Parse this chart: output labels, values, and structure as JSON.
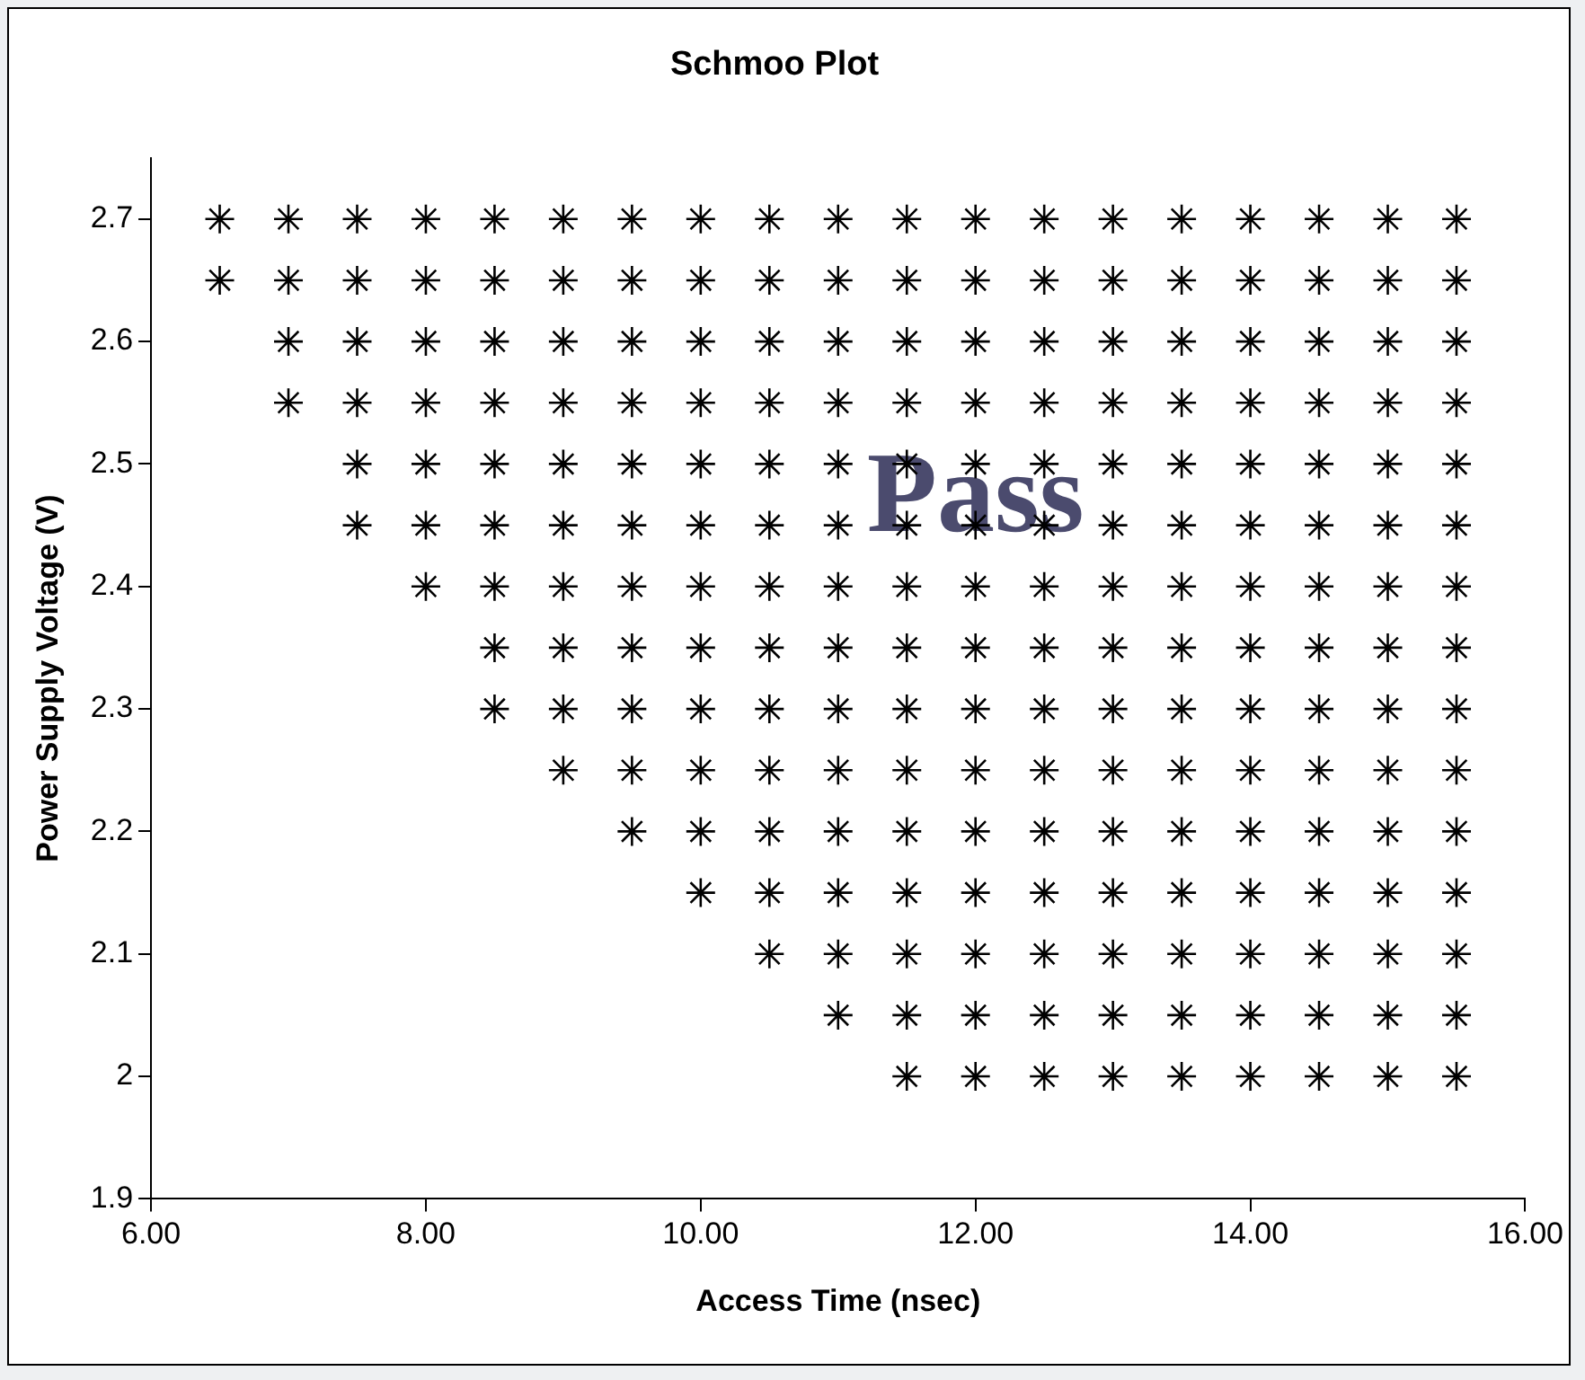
{
  "chart_data": {
    "type": "scatter",
    "title": "Schmoo Plot",
    "xlabel": "Access Time (nsec)",
    "ylabel": "Power Supply Voltage (V)",
    "xlim": [
      6,
      16
    ],
    "xticks": [
      {
        "value": 6,
        "label": "6.00"
      },
      {
        "value": 8,
        "label": "8.00"
      },
      {
        "value": 10,
        "label": "10.00"
      },
      {
        "value": 12,
        "label": "12.00"
      },
      {
        "value": 14,
        "label": "14.00"
      },
      {
        "value": 16,
        "label": "16.00"
      }
    ],
    "ylim": [
      1.9,
      2.75
    ],
    "yticks": [
      1.9,
      2,
      2.1,
      2.2,
      2.3,
      2.4,
      2.5,
      2.6,
      2.7
    ],
    "grid": false,
    "legend": false,
    "marker": "cross",
    "annotations": [
      "Pass"
    ],
    "series": [
      {
        "color": "#000000",
        "x": [
          6.5,
          7,
          7.5,
          8,
          8.5,
          9,
          9.5,
          10,
          10.5,
          11,
          11.5,
          12,
          12.5,
          13,
          13.5,
          14,
          14.5,
          15,
          15.5
        ],
        "values": [
          2.7,
          2.7,
          2.7,
          2.7,
          2.7,
          2.7,
          2.7,
          2.7,
          2.7,
          2.7,
          2.7,
          2.7,
          2.7,
          2.7,
          2.7,
          2.7,
          2.7,
          2.7,
          2.7
        ]
      },
      {
        "color": "#000000",
        "x": [
          6.5,
          7,
          7.5,
          8,
          8.5,
          9,
          9.5,
          10,
          10.5,
          11,
          11.5,
          12,
          12.5,
          13,
          13.5,
          14,
          14.5,
          15,
          15.5
        ],
        "values": [
          2.65,
          2.65,
          2.65,
          2.65,
          2.65,
          2.65,
          2.65,
          2.65,
          2.65,
          2.65,
          2.65,
          2.65,
          2.65,
          2.65,
          2.65,
          2.65,
          2.65,
          2.65,
          2.65
        ]
      },
      {
        "color": "#000000",
        "x": [
          7,
          7.5,
          8,
          8.5,
          9,
          9.5,
          10,
          10.5,
          11,
          11.5,
          12,
          12.5,
          13,
          13.5,
          14,
          14.5,
          15,
          15.5
        ],
        "values": [
          2.6,
          2.6,
          2.6,
          2.6,
          2.6,
          2.6,
          2.6,
          2.6,
          2.6,
          2.6,
          2.6,
          2.6,
          2.6,
          2.6,
          2.6,
          2.6,
          2.6,
          2.6
        ]
      },
      {
        "color": "#000000",
        "x": [
          7,
          7.5,
          8,
          8.5,
          9,
          9.5,
          10,
          10.5,
          11,
          11.5,
          12,
          12.5,
          13,
          13.5,
          14,
          14.5,
          15,
          15.5
        ],
        "values": [
          2.55,
          2.55,
          2.55,
          2.55,
          2.55,
          2.55,
          2.55,
          2.55,
          2.55,
          2.55,
          2.55,
          2.55,
          2.55,
          2.55,
          2.55,
          2.55,
          2.55,
          2.55
        ]
      },
      {
        "color": "#000000",
        "x": [
          7.5,
          8,
          8.5,
          9,
          9.5,
          10,
          10.5,
          11,
          11.5,
          12,
          12.5,
          13,
          13.5,
          14,
          14.5,
          15,
          15.5
        ],
        "values": [
          2.5,
          2.5,
          2.5,
          2.5,
          2.5,
          2.5,
          2.5,
          2.5,
          2.5,
          2.5,
          2.5,
          2.5,
          2.5,
          2.5,
          2.5,
          2.5,
          2.5
        ]
      },
      {
        "color": "#000000",
        "x": [
          7.5,
          8,
          8.5,
          9,
          9.5,
          10,
          10.5,
          11,
          11.5,
          12,
          12.5,
          13,
          13.5,
          14,
          14.5,
          15,
          15.5
        ],
        "values": [
          2.45,
          2.45,
          2.45,
          2.45,
          2.45,
          2.45,
          2.45,
          2.45,
          2.45,
          2.45,
          2.45,
          2.45,
          2.45,
          2.45,
          2.45,
          2.45,
          2.45
        ]
      },
      {
        "color": "#000000",
        "x": [
          8,
          8.5,
          9,
          9.5,
          10,
          10.5,
          11,
          11.5,
          12,
          12.5,
          13,
          13.5,
          14,
          14.5,
          15,
          15.5
        ],
        "values": [
          2.4,
          2.4,
          2.4,
          2.4,
          2.4,
          2.4,
          2.4,
          2.4,
          2.4,
          2.4,
          2.4,
          2.4,
          2.4,
          2.4,
          2.4,
          2.4
        ]
      },
      {
        "color": "#000000",
        "x": [
          8.5,
          9,
          9.5,
          10,
          10.5,
          11,
          11.5,
          12,
          12.5,
          13,
          13.5,
          14,
          14.5,
          15,
          15.5
        ],
        "values": [
          2.35,
          2.35,
          2.35,
          2.35,
          2.35,
          2.35,
          2.35,
          2.35,
          2.35,
          2.35,
          2.35,
          2.35,
          2.35,
          2.35,
          2.35
        ]
      },
      {
        "color": "#000000",
        "x": [
          8.5,
          9,
          9.5,
          10,
          10.5,
          11,
          11.5,
          12,
          12.5,
          13,
          13.5,
          14,
          14.5,
          15,
          15.5
        ],
        "values": [
          2.3,
          2.3,
          2.3,
          2.3,
          2.3,
          2.3,
          2.3,
          2.3,
          2.3,
          2.3,
          2.3,
          2.3,
          2.3,
          2.3,
          2.3
        ]
      },
      {
        "color": "#000000",
        "x": [
          9,
          9.5,
          10,
          10.5,
          11,
          11.5,
          12,
          12.5,
          13,
          13.5,
          14,
          14.5,
          15,
          15.5
        ],
        "values": [
          2.25,
          2.25,
          2.25,
          2.25,
          2.25,
          2.25,
          2.25,
          2.25,
          2.25,
          2.25,
          2.25,
          2.25,
          2.25,
          2.25
        ]
      },
      {
        "color": "#000000",
        "x": [
          9.5,
          10,
          10.5,
          11,
          11.5,
          12,
          12.5,
          13,
          13.5,
          14,
          14.5,
          15,
          15.5
        ],
        "values": [
          2.2,
          2.2,
          2.2,
          2.2,
          2.2,
          2.2,
          2.2,
          2.2,
          2.2,
          2.2,
          2.2,
          2.2,
          2.2
        ]
      },
      {
        "color": "#000000",
        "x": [
          10,
          10.5,
          11,
          11.5,
          12,
          12.5,
          13,
          13.5,
          14,
          14.5,
          15,
          15.5
        ],
        "values": [
          2.15,
          2.15,
          2.15,
          2.15,
          2.15,
          2.15,
          2.15,
          2.15,
          2.15,
          2.15,
          2.15,
          2.15
        ]
      },
      {
        "color": "#000000",
        "x": [
          10.5,
          11,
          11.5,
          12,
          12.5,
          13,
          13.5,
          14,
          14.5,
          15,
          15.5
        ],
        "values": [
          2.1,
          2.1,
          2.1,
          2.1,
          2.1,
          2.1,
          2.1,
          2.1,
          2.1,
          2.1,
          2.1
        ]
      },
      {
        "color": "#000000",
        "x": [
          11,
          11.5,
          12,
          12.5,
          13,
          13.5,
          14,
          14.5,
          15,
          15.5
        ],
        "values": [
          2.05,
          2.05,
          2.05,
          2.05,
          2.05,
          2.05,
          2.05,
          2.05,
          2.05,
          2.05
        ]
      },
      {
        "color": "#000000",
        "x": [
          11.5,
          12,
          12.5,
          13,
          13.5,
          14,
          14.5,
          15,
          15.5
        ],
        "values": [
          2,
          2,
          2,
          2,
          2,
          2,
          2,
          2,
          2
        ]
      }
    ]
  }
}
